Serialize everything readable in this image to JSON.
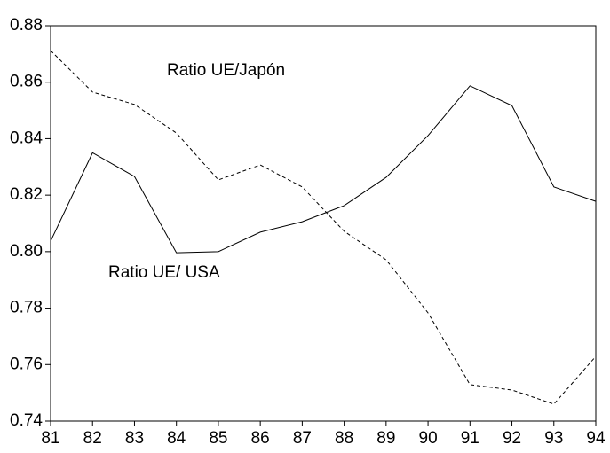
{
  "chart_data": {
    "type": "line",
    "categories": [
      "81",
      "82",
      "83",
      "84",
      "85",
      "86",
      "87",
      "88",
      "89",
      "90",
      "91",
      "92",
      "93",
      "94"
    ],
    "series": [
      {
        "name": "Ratio UE/ USA",
        "color": "#000000",
        "style": "solid",
        "values": [
          0.8037,
          0.835,
          0.8266,
          0.7996,
          0.8,
          0.8069,
          0.8106,
          0.8163,
          0.8263,
          0.8411,
          0.8587,
          0.8517,
          0.8229,
          0.8178
        ]
      },
      {
        "name": "Ratio UE/Japón",
        "color": "#000000",
        "style": "dashed",
        "values": [
          0.8712,
          0.8565,
          0.8521,
          0.842,
          0.8254,
          0.8307,
          0.8229,
          0.8072,
          0.7971,
          0.7783,
          0.7529,
          0.751,
          0.746,
          0.7629
        ]
      }
    ],
    "ylim": [
      0.74,
      0.88
    ],
    "yticks": [
      0.74,
      0.76,
      0.78,
      {
        "value": 0.8,
        "label": "0.80"
      },
      0.82,
      0.84,
      0.86,
      0.88
    ],
    "grid": false
  }
}
